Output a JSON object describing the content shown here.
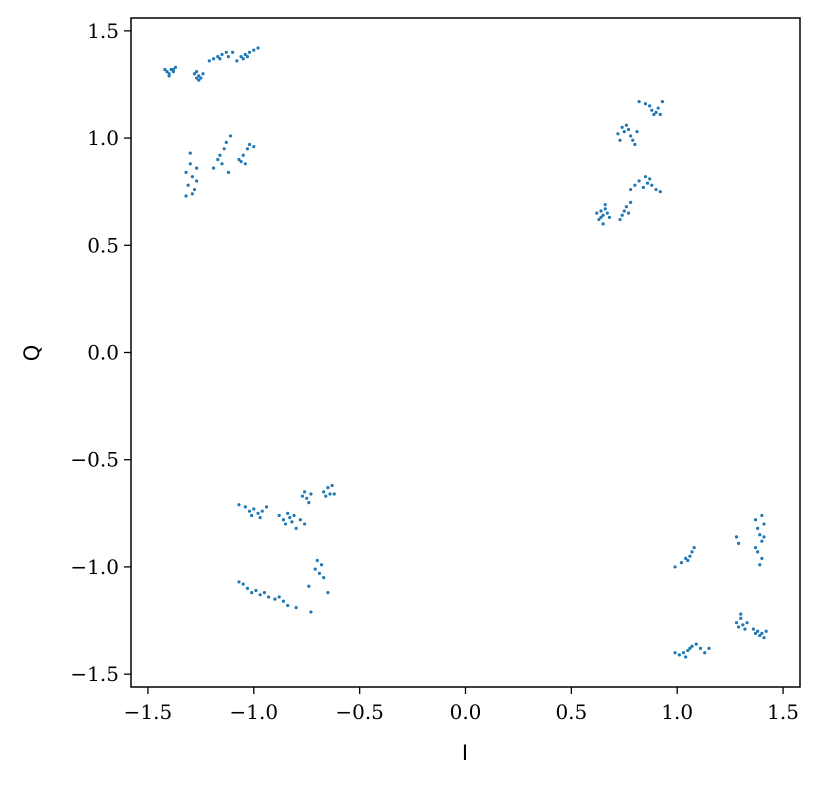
{
  "chart_data": {
    "type": "scatter",
    "title": "",
    "xlabel": "I",
    "ylabel": "Q",
    "xlim": [
      -1.58,
      1.58
    ],
    "ylim": [
      -1.56,
      1.56
    ],
    "x_ticks": [
      -1.5,
      -1.0,
      -0.5,
      0.0,
      0.5,
      1.0,
      1.5
    ],
    "x_tick_labels": [
      "−1.5",
      "−1.0",
      "−0.5",
      "0.0",
      "0.5",
      "1.0",
      "1.5"
    ],
    "y_ticks": [
      -1.5,
      -1.0,
      -0.5,
      0.0,
      0.5,
      1.0,
      1.5
    ],
    "y_tick_labels": [
      "−1.5",
      "−1.0",
      "−0.5",
      "0.0",
      "0.5",
      "1.0",
      "1.5"
    ],
    "grid": false,
    "legend": "none",
    "marker_color": "#1f77b4",
    "points": [
      [
        -1.42,
        1.32
      ],
      [
        -1.41,
        1.31
      ],
      [
        -1.4,
        1.3
      ],
      [
        -1.39,
        1.32
      ],
      [
        -1.38,
        1.31
      ],
      [
        -1.37,
        1.33
      ],
      [
        -1.4,
        1.29
      ],
      [
        -1.38,
        1.32
      ],
      [
        -1.28,
        1.3
      ],
      [
        -1.27,
        1.28
      ],
      [
        -1.26,
        1.29
      ],
      [
        -1.25,
        1.28
      ],
      [
        -1.24,
        1.3
      ],
      [
        -1.26,
        1.27
      ],
      [
        -1.27,
        1.31
      ],
      [
        -1.21,
        1.36
      ],
      [
        -1.19,
        1.37
      ],
      [
        -1.17,
        1.38
      ],
      [
        -1.15,
        1.39
      ],
      [
        -1.13,
        1.4
      ],
      [
        -1.16,
        1.37
      ],
      [
        -1.12,
        1.38
      ],
      [
        -1.1,
        1.4
      ],
      [
        -1.08,
        1.36
      ],
      [
        -1.06,
        1.38
      ],
      [
        -1.04,
        1.39
      ],
      [
        -1.02,
        1.4
      ],
      [
        -1.0,
        1.41
      ],
      [
        -0.98,
        1.42
      ],
      [
        -1.03,
        1.38
      ],
      [
        -1.05,
        1.37
      ],
      [
        -1.32,
        0.84
      ],
      [
        -1.31,
        0.78
      ],
      [
        -1.3,
        0.88
      ],
      [
        -1.29,
        0.82
      ],
      [
        -1.28,
        0.76
      ],
      [
        -1.27,
        0.8
      ],
      [
        -1.3,
        0.93
      ],
      [
        -1.32,
        0.73
      ],
      [
        -1.29,
        0.74
      ],
      [
        -1.27,
        0.86
      ],
      [
        -1.19,
        0.86
      ],
      [
        -1.17,
        0.9
      ],
      [
        -1.16,
        0.92
      ],
      [
        -1.15,
        0.88
      ],
      [
        -1.14,
        0.95
      ],
      [
        -1.13,
        0.98
      ],
      [
        -1.12,
        0.84
      ],
      [
        -1.11,
        1.01
      ],
      [
        -1.07,
        0.9
      ],
      [
        -1.05,
        0.92
      ],
      [
        -1.04,
        0.88
      ],
      [
        -1.03,
        0.95
      ],
      [
        -1.02,
        0.97
      ],
      [
        -1.0,
        0.96
      ],
      [
        -1.06,
        0.89
      ],
      [
        0.62,
        0.65
      ],
      [
        0.63,
        0.62
      ],
      [
        0.64,
        0.66
      ],
      [
        0.65,
        0.64
      ],
      [
        0.66,
        0.67
      ],
      [
        0.67,
        0.65
      ],
      [
        0.65,
        0.6
      ],
      [
        0.68,
        0.63
      ],
      [
        0.66,
        0.69
      ],
      [
        0.64,
        0.63
      ],
      [
        0.74,
        0.64
      ],
      [
        0.75,
        0.66
      ],
      [
        0.76,
        0.68
      ],
      [
        0.77,
        0.65
      ],
      [
        0.78,
        0.7
      ],
      [
        0.73,
        0.62
      ],
      [
        0.78,
        0.76
      ],
      [
        0.8,
        0.78
      ],
      [
        0.82,
        0.8
      ],
      [
        0.84,
        0.77
      ],
      [
        0.86,
        0.79
      ],
      [
        0.88,
        0.78
      ],
      [
        0.9,
        0.76
      ],
      [
        0.92,
        0.75
      ],
      [
        0.85,
        0.82
      ],
      [
        0.87,
        0.81
      ],
      [
        0.72,
        1.02
      ],
      [
        0.74,
        1.05
      ],
      [
        0.75,
        1.03
      ],
      [
        0.76,
        1.06
      ],
      [
        0.77,
        1.04
      ],
      [
        0.78,
        1.01
      ],
      [
        0.79,
        0.99
      ],
      [
        0.8,
        0.97
      ],
      [
        0.73,
        0.99
      ],
      [
        0.81,
        1.03
      ],
      [
        0.82,
        1.17
      ],
      [
        0.85,
        1.16
      ],
      [
        0.87,
        1.15
      ],
      [
        0.88,
        1.13
      ],
      [
        0.89,
        1.11
      ],
      [
        0.9,
        1.12
      ],
      [
        0.92,
        1.11
      ],
      [
        0.93,
        1.17
      ],
      [
        0.91,
        1.14
      ],
      [
        -1.07,
        -0.71
      ],
      [
        -1.04,
        -0.72
      ],
      [
        -1.02,
        -0.74
      ],
      [
        -1.0,
        -0.73
      ],
      [
        -0.98,
        -0.75
      ],
      [
        -0.96,
        -0.74
      ],
      [
        -0.94,
        -0.72
      ],
      [
        -1.01,
        -0.76
      ],
      [
        -0.97,
        -0.77
      ],
      [
        -0.88,
        -0.76
      ],
      [
        -0.86,
        -0.78
      ],
      [
        -0.84,
        -0.75
      ],
      [
        -0.83,
        -0.77
      ],
      [
        -0.82,
        -0.79
      ],
      [
        -0.81,
        -0.76
      ],
      [
        -0.8,
        -0.82
      ],
      [
        -0.85,
        -0.8
      ],
      [
        -0.78,
        -0.78
      ],
      [
        -0.76,
        -0.8
      ],
      [
        -0.77,
        -0.67
      ],
      [
        -0.76,
        -0.65
      ],
      [
        -0.75,
        -0.68
      ],
      [
        -0.74,
        -0.7
      ],
      [
        -0.73,
        -0.66
      ],
      [
        -0.67,
        -0.65
      ],
      [
        -0.66,
        -0.67
      ],
      [
        -0.65,
        -0.63
      ],
      [
        -0.64,
        -0.66
      ],
      [
        -0.63,
        -0.62
      ],
      [
        -0.62,
        -0.66
      ],
      [
        -1.07,
        -1.07
      ],
      [
        -1.05,
        -1.08
      ],
      [
        -1.03,
        -1.1
      ],
      [
        -1.01,
        -1.12
      ],
      [
        -0.99,
        -1.11
      ],
      [
        -0.97,
        -1.13
      ],
      [
        -0.95,
        -1.12
      ],
      [
        -0.93,
        -1.14
      ],
      [
        -0.9,
        -1.15
      ],
      [
        -0.88,
        -1.14
      ],
      [
        -0.86,
        -1.16
      ],
      [
        -0.84,
        -1.18
      ],
      [
        -0.8,
        -1.19
      ],
      [
        -0.74,
        -1.09
      ],
      [
        -0.73,
        -1.21
      ],
      [
        -0.71,
        -1.01
      ],
      [
        -0.7,
        -0.97
      ],
      [
        -0.69,
        -1.03
      ],
      [
        -0.68,
        -0.99
      ],
      [
        -0.67,
        -1.05
      ],
      [
        -0.65,
        -1.12
      ],
      [
        0.99,
        -1.0
      ],
      [
        1.02,
        -0.98
      ],
      [
        1.04,
        -0.96
      ],
      [
        1.06,
        -0.95
      ],
      [
        1.07,
        -0.93
      ],
      [
        1.08,
        -0.91
      ],
      [
        1.05,
        -0.97
      ],
      [
        1.28,
        -0.86
      ],
      [
        1.29,
        -0.89
      ],
      [
        1.37,
        -0.78
      ],
      [
        1.38,
        -0.82
      ],
      [
        1.39,
        -0.85
      ],
      [
        1.4,
        -0.88
      ],
      [
        1.41,
        -0.8
      ],
      [
        1.38,
        -0.93
      ],
      [
        1.4,
        -0.96
      ],
      [
        1.39,
        -0.99
      ],
      [
        1.37,
        -0.91
      ],
      [
        1.41,
        -0.86
      ],
      [
        1.4,
        -0.76
      ],
      [
        0.99,
        -1.4
      ],
      [
        1.01,
        -1.41
      ],
      [
        1.03,
        -1.4
      ],
      [
        1.05,
        -1.39
      ],
      [
        1.06,
        -1.38
      ],
      [
        1.07,
        -1.37
      ],
      [
        1.09,
        -1.36
      ],
      [
        1.11,
        -1.38
      ],
      [
        1.13,
        -1.4
      ],
      [
        1.15,
        -1.38
      ],
      [
        1.04,
        -1.42
      ],
      [
        1.28,
        -1.26
      ],
      [
        1.29,
        -1.28
      ],
      [
        1.3,
        -1.24
      ],
      [
        1.31,
        -1.27
      ],
      [
        1.32,
        -1.29
      ],
      [
        1.3,
        -1.22
      ],
      [
        1.33,
        -1.26
      ],
      [
        1.36,
        -1.29
      ],
      [
        1.37,
        -1.31
      ],
      [
        1.38,
        -1.3
      ],
      [
        1.39,
        -1.32
      ],
      [
        1.4,
        -1.31
      ],
      [
        1.41,
        -1.33
      ],
      [
        1.42,
        -1.3
      ]
    ]
  }
}
